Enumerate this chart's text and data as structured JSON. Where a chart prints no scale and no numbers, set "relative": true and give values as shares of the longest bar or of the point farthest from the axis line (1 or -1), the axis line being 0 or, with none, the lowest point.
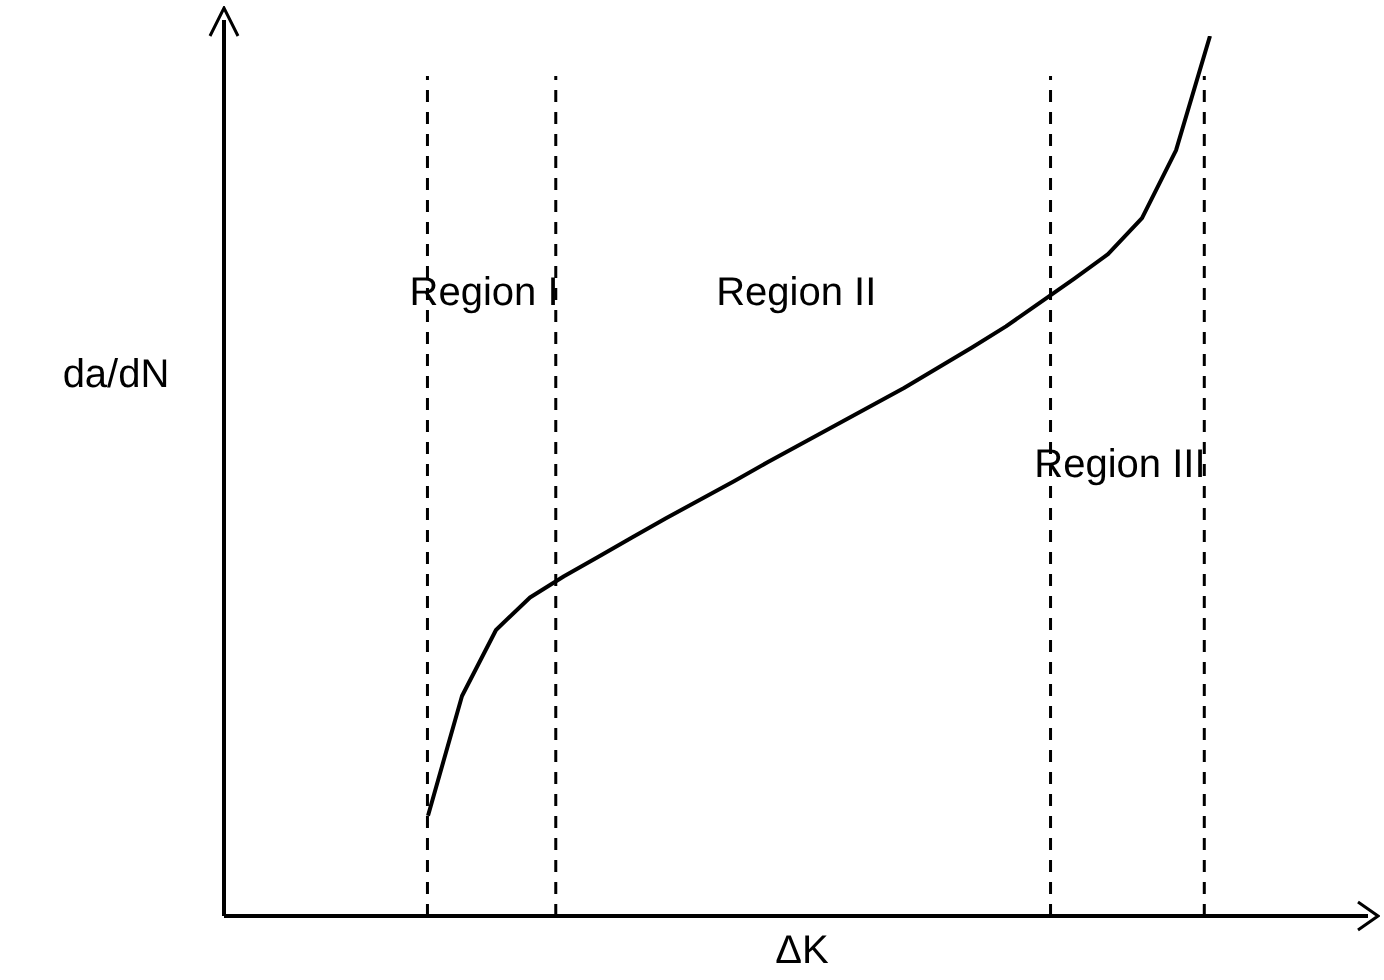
{
  "chart_data": {
    "type": "line",
    "relative": true,
    "xlabel": "ΔK",
    "ylabel": "da/dN",
    "legend": false,
    "marker": "none",
    "line_style": "solid",
    "categories": [
      null,
      null,
      null,
      null,
      null,
      null,
      null,
      null,
      null,
      null,
      null,
      null,
      null,
      null,
      null,
      null,
      null,
      null,
      null,
      null,
      null,
      null,
      null,
      null,
      null,
      null,
      null,
      null,
      null,
      null,
      null,
      null,
      null,
      null,
      null
    ],
    "series": [
      {
        "color": "#000000",
        "values": [
          null,
          null,
          null,
          null,
          null,
          null,
          0.114,
          0.25,
          0.325,
          0.362,
          0.386,
          0.408,
          0.43,
          0.452,
          0.473,
          0.494,
          0.516,
          0.537,
          0.558,
          0.579,
          0.6,
          0.623,
          0.646,
          0.67,
          0.697,
          0.724,
          0.752,
          0.793,
          0.87,
          1,
          null,
          null,
          null,
          null,
          null
        ]
      }
    ],
    "annotations": [
      "Region I",
      "Region II",
      "Region III"
    ]
  }
}
